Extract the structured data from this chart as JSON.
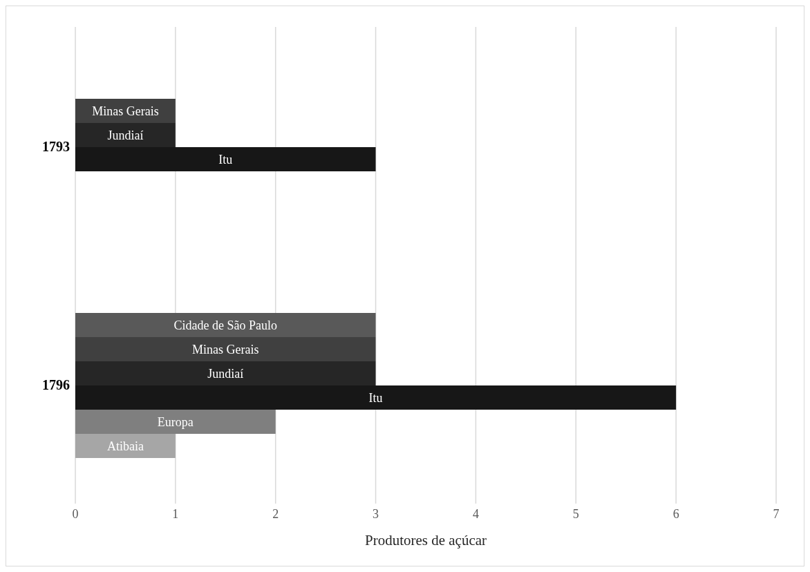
{
  "chart_data": {
    "type": "bar",
    "orientation": "horizontal",
    "xlabel": "Produtores de açúcar",
    "categories": [
      "1793",
      "1796"
    ],
    "series": [
      {
        "name": "Cidade de São Paulo",
        "color": "#595959",
        "values": [
          null,
          3
        ]
      },
      {
        "name": "Minas Gerais",
        "color": "#404040",
        "values": [
          1,
          3
        ]
      },
      {
        "name": "Jundiaí",
        "color": "#262626",
        "values": [
          1,
          3
        ]
      },
      {
        "name": "Itu",
        "color": "#171717",
        "values": [
          3,
          6
        ]
      },
      {
        "name": "Europa",
        "color": "#7f7f7f",
        "values": [
          null,
          2
        ]
      },
      {
        "name": "Atibaia",
        "color": "#a6a6a6",
        "values": [
          null,
          1
        ]
      }
    ],
    "xlim": [
      0,
      7
    ],
    "xticks": [
      0,
      1,
      2,
      3,
      4,
      5,
      6,
      7
    ],
    "grid": "x",
    "legend": false
  }
}
